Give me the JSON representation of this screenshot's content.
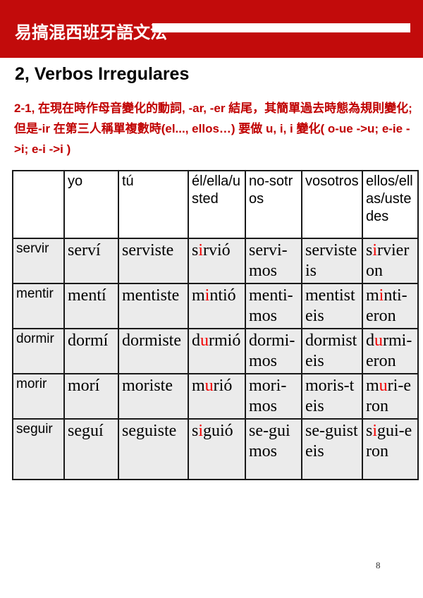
{
  "colors": {
    "header_band": "#c20b0b",
    "header_text": "#ffffff",
    "note_text": "#c00000",
    "highlight_letter": "#f20000",
    "row_background": "#ebebeb",
    "table_border": "#1a1a1a"
  },
  "header": {
    "title": "易搞混西班牙語文法"
  },
  "section": {
    "title": "2, Verbos Irregulares",
    "note": "2-1, 在現在時作母音變化的動詞, -ar, -er 結尾，其簡單過去時態為規則變化; 但是-ir 在第三人稱單複數時(el..., ellos…) 要做 u, i, i 變化( o-ue ->u; e-ie ->i; e-i ->i )"
  },
  "table": {
    "headers": [
      "",
      "yo",
      "tú",
      "él/ella/usted",
      "no-sotros",
      "vosotros",
      "ellos/ellas/ustedes"
    ],
    "rows": [
      {
        "verb": "servir",
        "cells": [
          "serví",
          "serviste",
          [
            {
              "text": "s"
            },
            {
              "text": "i",
              "color": "red"
            },
            {
              "text": "rvió"
            }
          ],
          "servi-mos",
          "servisteis",
          [
            {
              "text": "s"
            },
            {
              "text": "i",
              "color": "red"
            },
            {
              "text": "rvieron"
            }
          ]
        ]
      },
      {
        "verb": "mentir",
        "cells": [
          "mentí",
          "mentiste",
          [
            {
              "text": "m"
            },
            {
              "text": "i",
              "color": "red"
            },
            {
              "text": "ntió"
            }
          ],
          "menti-mos",
          "mentisteis",
          [
            {
              "text": "m"
            },
            {
              "text": "i",
              "color": "red"
            },
            {
              "text": "nti-eron"
            }
          ]
        ]
      },
      {
        "verb": "dormir",
        "cells": [
          "dormí",
          "dormiste",
          [
            {
              "text": "d"
            },
            {
              "text": "u",
              "color": "red"
            },
            {
              "text": "rmió"
            }
          ],
          "dormi-mos",
          "dormisteis",
          [
            {
              "text": "d"
            },
            {
              "text": "u",
              "color": "red"
            },
            {
              "text": "rmi-eron"
            }
          ]
        ]
      },
      {
        "verb": "morir",
        "cells": [
          "morí",
          "moriste",
          [
            {
              "text": "m"
            },
            {
              "text": "u",
              "color": "red"
            },
            {
              "text": "rió"
            }
          ],
          "mori-mos",
          "moris-teis",
          [
            {
              "text": "m"
            },
            {
              "text": "u",
              "color": "red"
            },
            {
              "text": "ri-eron"
            }
          ]
        ]
      },
      {
        "verb": "seguir",
        "tall": true,
        "cells": [
          "seguí",
          "seguiste",
          [
            {
              "text": "s"
            },
            {
              "text": "i",
              "color": "red"
            },
            {
              "text": "guió"
            }
          ],
          "se-guimos",
          "se-guisteis",
          [
            {
              "text": "s"
            },
            {
              "text": "i",
              "color": "red"
            },
            {
              "text": "gui-eron"
            }
          ]
        ]
      }
    ]
  },
  "footer": {
    "page_number": "8"
  }
}
